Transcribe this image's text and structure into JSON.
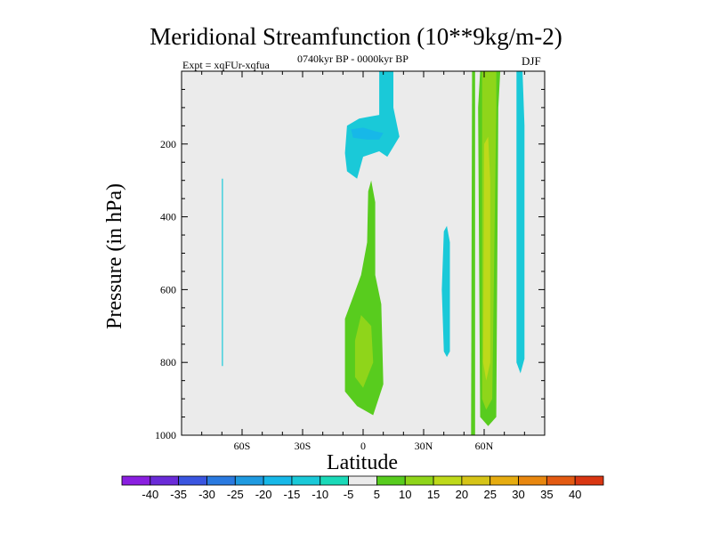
{
  "chart_data": {
    "type": "contour",
    "title": "Meridional Streamfunction (10**9kg/m-2)",
    "left_label": "Expt = xqFUr-xqfua",
    "center_label": "0740kyr BP - 0000kyr BP",
    "right_label": "DJF",
    "xlabel": "Latitude",
    "ylabel": "Pressure (in hPa)",
    "xlim": [
      -90,
      90
    ],
    "ylim": [
      1000,
      0
    ],
    "x_ticks": [
      {
        "value": -60,
        "label": "60S"
      },
      {
        "value": -30,
        "label": "30S"
      },
      {
        "value": 0,
        "label": "0"
      },
      {
        "value": 30,
        "label": "30N"
      },
      {
        "value": 60,
        "label": "60N"
      }
    ],
    "y_ticks": [
      {
        "value": 200,
        "label": "200"
      },
      {
        "value": 400,
        "label": "400"
      },
      {
        "value": 600,
        "label": "600"
      },
      {
        "value": 800,
        "label": "800"
      },
      {
        "value": 1000,
        "label": "1000"
      }
    ],
    "levels": [
      "-40",
      "-35",
      "-30",
      "-25",
      "-20",
      "-15",
      "-10",
      "-5",
      "5",
      "10",
      "15",
      "20",
      "25",
      "30",
      "35",
      "40"
    ],
    "colors": [
      "#8a1fe0",
      "#6a2bd8",
      "#3a55e0",
      "#2a7ae0",
      "#1f9ae0",
      "#17b8e8",
      "#1ac9d8",
      "#1ad9b8",
      "#ebebeb",
      "#58cc1e",
      "#8fd51a",
      "#bed91a",
      "#d6c417",
      "#e6ac10",
      "#e8870f",
      "#e35a12",
      "#d93612"
    ],
    "background": "#ebebeb",
    "regions": [
      {
        "name": "neg-strip-60s",
        "level": "-10",
        "points": [
          [
            -70,
            295
          ],
          [
            -69.5,
            295
          ],
          [
            -69.5,
            810
          ],
          [
            -70,
            810
          ]
        ]
      },
      {
        "name": "neg-upper-equator",
        "level": "-10",
        "points": [
          [
            8,
            0
          ],
          [
            15,
            0
          ],
          [
            15,
            100
          ],
          [
            18,
            180
          ],
          [
            12,
            235
          ],
          [
            8,
            220
          ],
          [
            0,
            235
          ],
          [
            -3,
            295
          ],
          [
            -8,
            275
          ],
          [
            -9,
            225
          ],
          [
            -8,
            150
          ],
          [
            -2,
            130
          ],
          [
            3,
            125
          ],
          [
            8,
            120
          ]
        ]
      },
      {
        "name": "neg-inner-equator",
        "level": "-15",
        "points": [
          [
            -6,
            160
          ],
          [
            0,
            155
          ],
          [
            6,
            165
          ],
          [
            10,
            170
          ],
          [
            8,
            188
          ],
          [
            2,
            188
          ],
          [
            -5,
            183
          ]
        ]
      },
      {
        "name": "neg-strip-40n",
        "level": "-10",
        "points": [
          [
            40,
            440
          ],
          [
            41.5,
            425
          ],
          [
            43,
            470
          ],
          [
            43,
            770
          ],
          [
            41.5,
            785
          ],
          [
            40,
            770
          ],
          [
            39,
            600
          ]
        ]
      },
      {
        "name": "neg-strip-78n",
        "level": "-10",
        "points": [
          [
            76,
            0
          ],
          [
            79,
            0
          ],
          [
            80,
            150
          ],
          [
            80,
            790
          ],
          [
            78,
            830
          ],
          [
            76,
            800
          ],
          [
            76,
            150
          ]
        ]
      },
      {
        "name": "pos-lower-equator",
        "level": "5",
        "points": [
          [
            4,
            300
          ],
          [
            6,
            360
          ],
          [
            6,
            560
          ],
          [
            9,
            640
          ],
          [
            10,
            860
          ],
          [
            5,
            945
          ],
          [
            -3,
            920
          ],
          [
            -9,
            880
          ],
          [
            -9,
            680
          ],
          [
            -5,
            620
          ],
          [
            -1,
            560
          ],
          [
            2,
            470
          ],
          [
            2.5,
            330
          ]
        ]
      },
      {
        "name": "pos-core-equator",
        "level": "10",
        "points": [
          [
            -1,
            670
          ],
          [
            4,
            700
          ],
          [
            5,
            800
          ],
          [
            0,
            870
          ],
          [
            -4,
            840
          ],
          [
            -4,
            740
          ]
        ]
      },
      {
        "name": "pos-strip-55n",
        "level": "5",
        "points": [
          [
            54,
            0
          ],
          [
            55.5,
            0
          ],
          [
            55.5,
            1060
          ],
          [
            54,
            1060
          ],
          [
            53.5,
            1050
          ]
        ]
      },
      {
        "name": "pos-band-60n",
        "level": "5",
        "points": [
          [
            58,
            0
          ],
          [
            68,
            0
          ],
          [
            67,
            100
          ],
          [
            66,
            950
          ],
          [
            62,
            975
          ],
          [
            58,
            950
          ],
          [
            57,
            100
          ]
        ]
      },
      {
        "name": "pos-band-60n-inner",
        "level": "10",
        "points": [
          [
            59,
            0
          ],
          [
            66,
            0
          ],
          [
            66,
            100
          ],
          [
            64,
            900
          ],
          [
            61,
            930
          ],
          [
            59,
            900
          ]
        ]
      },
      {
        "name": "pos-core-60n",
        "level": "15",
        "points": [
          [
            60,
            200
          ],
          [
            62,
            180
          ],
          [
            63,
            300
          ],
          [
            63,
            800
          ],
          [
            61,
            850
          ],
          [
            59.5,
            800
          ]
        ]
      }
    ]
  }
}
